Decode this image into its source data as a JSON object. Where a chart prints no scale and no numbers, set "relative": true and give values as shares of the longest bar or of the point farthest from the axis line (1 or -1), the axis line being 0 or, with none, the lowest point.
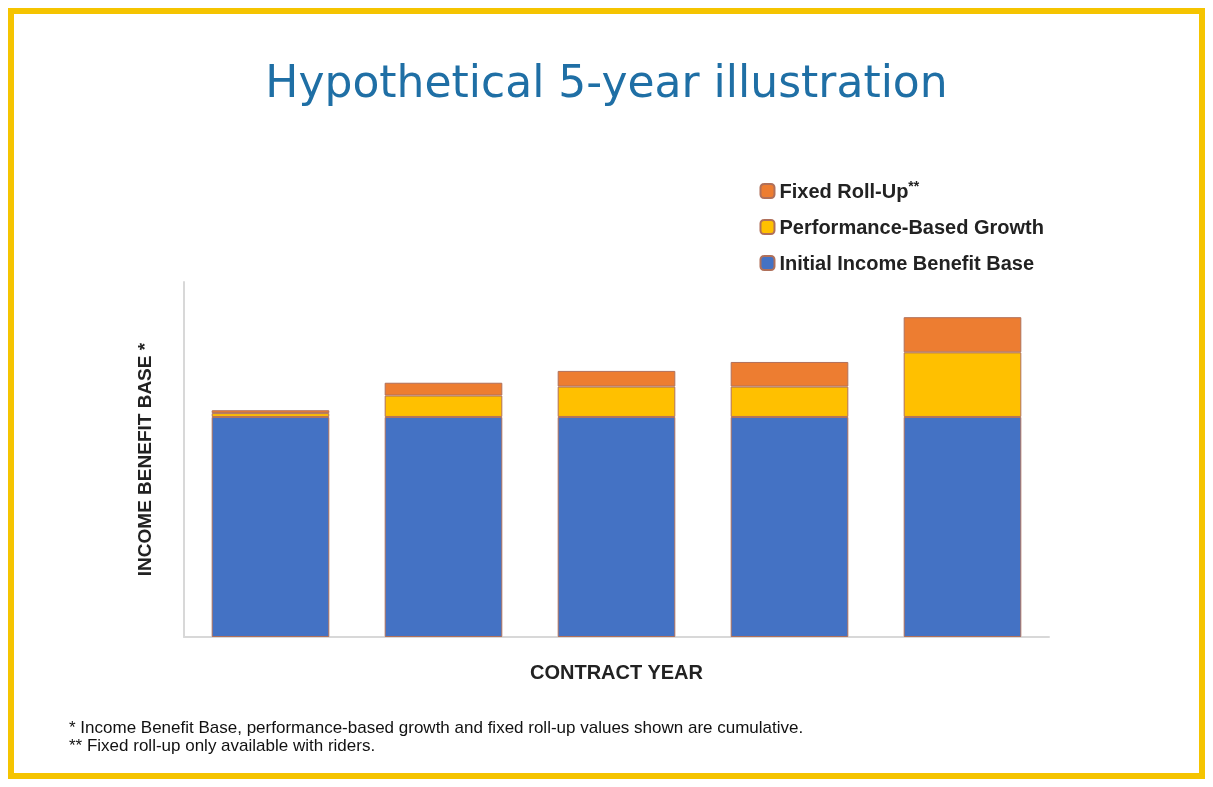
{
  "chart_data": {
    "type": "bar",
    "title": "Hypothetical 5-year illustration",
    "xlabel": "CONTRACT YEAR",
    "ylabel": "INCOME BENEFIT BASE *",
    "stacked": true,
    "relative": true,
    "categories": [
      null,
      null,
      null,
      null,
      null
    ],
    "series": [
      {
        "name": "Initial Income Benefit Base",
        "color": "#4472c4",
        "values": [
          0.688,
          0.688,
          0.688,
          0.688,
          0.688
        ]
      },
      {
        "name": "Performance-Based Growth",
        "color": "#ffc000",
        "values": [
          0.012,
          0.067,
          0.095,
          0.095,
          0.202
        ]
      },
      {
        "name": "Fixed Roll-Up$^{**}$",
        "color": "#ed7d31",
        "values": [
          0.009,
          0.04,
          0.049,
          0.077,
          0.11
        ]
      }
    ],
    "legend": "top right",
    "grid": false,
    "annotations": [
      "* Income Benefit Base, performance-based growth and fixed roll-up values shown are cumulative.",
      "** Fixed roll-up only available with riders."
    ]
  }
}
